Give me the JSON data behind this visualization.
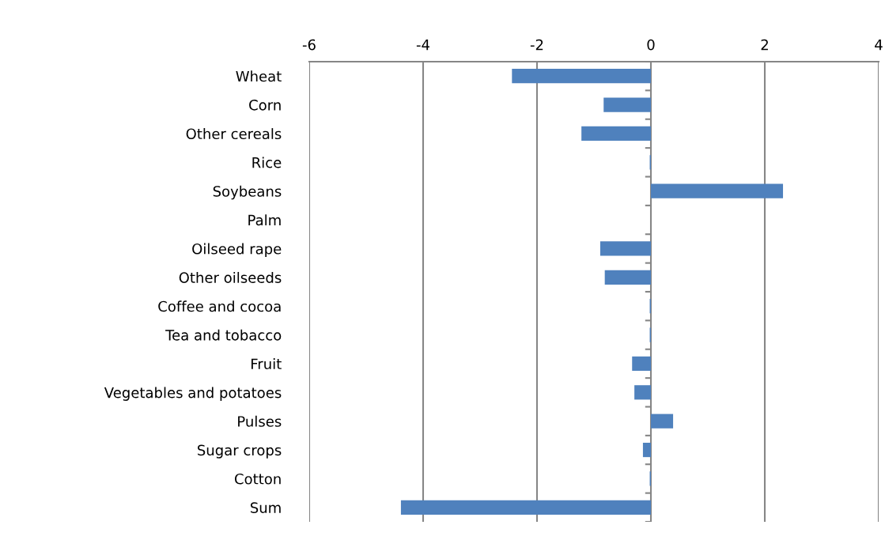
{
  "chart_data": {
    "type": "bar",
    "orientation": "horizontal",
    "categories": [
      "Wheat",
      "Corn",
      "Other cereals",
      "Rice",
      "Soybeans",
      "Palm",
      "Oilseed rape",
      "Other oilseeds",
      "Coffee and cocoa",
      "Tea and tobacco",
      "Fruit",
      "Vegetables and potatoes",
      "Pulses",
      "Sugar crops",
      "Cotton",
      "Sum"
    ],
    "values": [
      -2.44,
      -0.83,
      -1.22,
      -0.02,
      2.32,
      0,
      -0.89,
      -0.81,
      -0.02,
      -0.02,
      -0.33,
      -0.29,
      0.39,
      -0.14,
      -0.02,
      -4.39
    ],
    "color": "#4f81bd",
    "xlim": [
      -6,
      4
    ],
    "xticks": [
      -6,
      -4,
      -2,
      0,
      2,
      4
    ],
    "grid": "x"
  }
}
